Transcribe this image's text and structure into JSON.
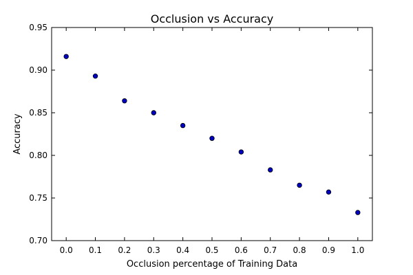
{
  "chart_data": {
    "type": "scatter",
    "title": "Occlusion vs Accuracy",
    "xlabel": "Occlusion percentage of Training Data",
    "ylabel": "Accuracy",
    "xlim": [
      -0.05,
      1.05
    ],
    "ylim": [
      0.7,
      0.95
    ],
    "xticks": [
      0.0,
      0.1,
      0.2,
      0.3,
      0.4,
      0.5,
      0.6,
      0.7,
      0.8,
      0.9,
      1.0
    ],
    "xtick_labels": [
      "0.0",
      "0.1",
      "0.2",
      "0.3",
      "0.4",
      "0.5",
      "0.6",
      "0.7",
      "0.8",
      "0.9",
      "1.0"
    ],
    "yticks": [
      0.7,
      0.75,
      0.8,
      0.85,
      0.9,
      0.95
    ],
    "ytick_labels": [
      "0.70",
      "0.75",
      "0.80",
      "0.85",
      "0.90",
      "0.95"
    ],
    "grid": false,
    "point_color": "#0000bf",
    "series": [
      {
        "x": [
          0.0,
          0.1,
          0.2,
          0.3,
          0.4,
          0.5,
          0.6,
          0.7,
          0.8,
          0.9,
          1.0
        ],
        "y": [
          0.916,
          0.893,
          0.864,
          0.85,
          0.835,
          0.82,
          0.804,
          0.783,
          0.765,
          0.757,
          0.733
        ]
      }
    ]
  }
}
